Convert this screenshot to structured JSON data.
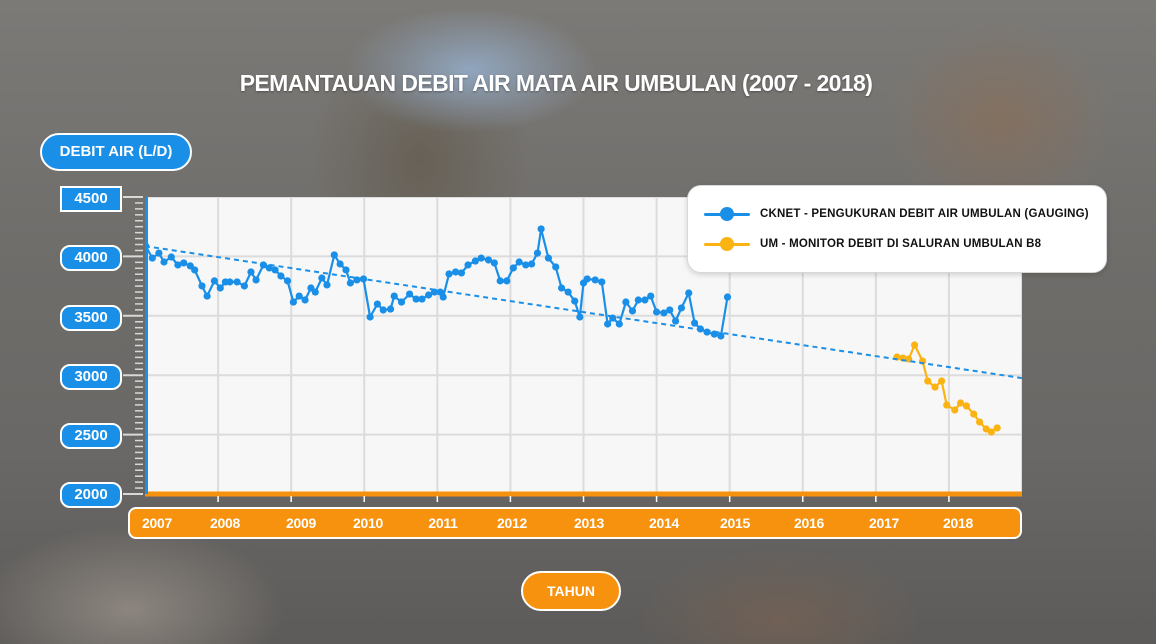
{
  "title": "PEMANTAUAN DEBIT AIR MATA AIR UMBULAN (2007 - 2018)",
  "y_axis": {
    "label": "DEBIT AIR (L/D)",
    "ticks": [
      "4500",
      "4000",
      "3500",
      "3000",
      "2500",
      "2000"
    ]
  },
  "x_axis": {
    "label": "TAHUN",
    "ticks": [
      "2007",
      "2008",
      "2009",
      "2010",
      "2011",
      "2012",
      "2013",
      "2014",
      "2015",
      "2016",
      "2017",
      "2018"
    ]
  },
  "legend": {
    "items": [
      {
        "label": "CKNET - PENGUKURAN DEBIT AIR UMBULAN (GAUGING)",
        "color": "#1a8fe8"
      },
      {
        "label": "UM - MONITOR DEBIT DI SALURAN UMBULAN B8",
        "color": "#fbb313"
      }
    ]
  },
  "colors": {
    "blue": "#1a8fe8",
    "orange": "#fbb313",
    "axis_orange": "#f7920f",
    "grid": "#dcdcdc",
    "plot_bg": "#f7f7f7"
  },
  "chart_data": {
    "type": "line",
    "title": "PEMANTAUAN DEBIT AIR MATA AIR UMBULAN (2007 - 2018)",
    "xlabel": "TAHUN",
    "ylabel": "DEBIT AIR (L/D)",
    "xlim": [
      2007,
      2019
    ],
    "ylim": [
      2000,
      4500
    ],
    "yticks": [
      2000,
      2500,
      3000,
      3500,
      4000,
      4500
    ],
    "xticks": [
      2007,
      2008,
      2009,
      2010,
      2011,
      2012,
      2013,
      2014,
      2015,
      2016,
      2017,
      2018
    ],
    "grid": true,
    "legend_position": "top-right",
    "series": [
      {
        "name": "CKNET - PENGUKURAN DEBIT AIR UMBULAN (GAUGING)",
        "color": "#1a8fe8",
        "marker": "circle",
        "x": [
          2007.01,
          2007.1,
          2007.19,
          2007.26,
          2007.36,
          2007.45,
          2007.53,
          2007.62,
          2007.68,
          2007.78,
          2007.85,
          2007.95,
          2008.03,
          2008.1,
          2008.16,
          2008.26,
          2008.36,
          2008.45,
          2008.52,
          2008.62,
          2008.7,
          2008.78,
          2008.86,
          2008.95,
          2009.03,
          2009.11,
          2009.19,
          2009.27,
          2009.33,
          2009.42,
          2009.49,
          2009.59,
          2009.67,
          2009.75,
          2009.81,
          2009.9,
          2009.99,
          2010.08,
          2010.18,
          2010.26,
          2010.36,
          2010.41,
          2010.51,
          2010.62,
          2010.71,
          2010.79,
          2010.88,
          2010.96,
          2011.04,
          2011.08,
          2011.16,
          2011.25,
          2011.33,
          2011.42,
          2011.52,
          2011.6,
          2011.7,
          2011.78,
          2011.86,
          2011.95,
          2012.04,
          2012.12,
          2012.21,
          2012.29,
          2012.37,
          2012.42,
          2012.52,
          2012.62,
          2012.7,
          2012.79,
          2012.88,
          2012.95,
          2013.0,
          2013.05,
          2013.16,
          2013.25,
          2013.33,
          2013.4,
          2013.49,
          2013.58,
          2013.67,
          2013.75,
          2013.84,
          2013.92,
          2014.0,
          2014.1,
          2014.18,
          2014.26,
          2014.34,
          2014.44,
          2014.52,
          2014.6,
          2014.69,
          2014.79,
          2014.88,
          2014.97
        ],
        "values": [
          4087,
          3986,
          4028,
          3953,
          3995,
          3928,
          3945,
          3920,
          3886,
          3751,
          3666,
          3794,
          3734,
          3785,
          3785,
          3785,
          3751,
          3869,
          3802,
          3928,
          3903,
          3886,
          3835,
          3794,
          3616,
          3666,
          3633,
          3734,
          3700,
          3818,
          3760,
          4012,
          3936,
          3886,
          3776,
          3802,
          3810,
          3490,
          3599,
          3549,
          3557,
          3666,
          3616,
          3683,
          3641,
          3641,
          3675,
          3700,
          3700,
          3658,
          3852,
          3869,
          3861,
          3928,
          3961,
          3986,
          3970,
          3945,
          3794,
          3794,
          3903,
          3953,
          3928,
          3936,
          4028,
          4231,
          3986,
          3911,
          3734,
          3700,
          3624,
          3490,
          3776,
          3810,
          3802,
          3785,
          3431,
          3481,
          3431,
          3616,
          3541,
          3633,
          3633,
          3666,
          3532,
          3524,
          3549,
          3456,
          3566,
          3692,
          3439,
          3389,
          3363,
          3346,
          3330,
          3658
        ]
      },
      {
        "name": "UM - MONITOR DEBIT DI SALURAN UMBULAN B8",
        "color": "#fbb313",
        "marker": "circle",
        "x": [
          2017.29,
          2017.37,
          2017.45,
          2017.53,
          2017.64,
          2017.71,
          2017.81,
          2017.9,
          2017.97,
          2018.08,
          2018.16,
          2018.24,
          2018.34,
          2018.42,
          2018.51,
          2018.58,
          2018.66
        ],
        "values": [
          3153,
          3144,
          3136,
          3254,
          3119,
          2951,
          2900,
          2951,
          2749,
          2707,
          2766,
          2741,
          2673,
          2606,
          2547,
          2522,
          2556
        ]
      },
      {
        "name": "Trend (CKNET)",
        "color": "#1a8fe8",
        "style": "dashed",
        "x": [
          2007,
          2019
        ],
        "values": [
          4087,
          2976
        ]
      }
    ]
  }
}
